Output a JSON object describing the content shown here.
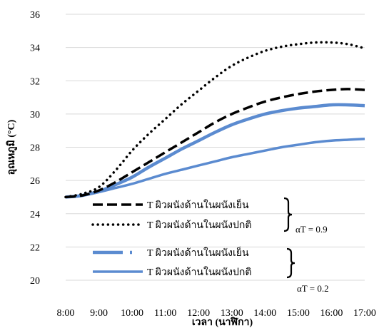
{
  "chart_data": {
    "type": "line",
    "title": "",
    "xlabel": "เวลา (นาฬิกา)",
    "ylabel": "อุณหภูมิ (°C)",
    "ylim": [
      20,
      36
    ],
    "yticks": [
      20,
      22,
      24,
      26,
      28,
      30,
      32,
      34,
      36
    ],
    "grid": "horizontal",
    "legend_position": "bottom-left-inside",
    "categories": [
      "8:00",
      "9:00",
      "10:00",
      "11:00",
      "12:00",
      "13:00",
      "14:00",
      "15:00",
      "16:00",
      "17:00"
    ],
    "series": [
      {
        "name": "T ผิวผนังด้านในผนังเย็น",
        "color": "#000000",
        "dash": "long-dash",
        "x": [
          8.0,
          8.5,
          9.0,
          9.5,
          10.0,
          10.5,
          11.0,
          11.5,
          12.0,
          12.5,
          13.0,
          13.5,
          14.0,
          14.5,
          15.0,
          15.5,
          16.0,
          16.5,
          17.0
        ],
        "values": [
          25.0,
          25.1,
          25.4,
          25.9,
          26.5,
          27.1,
          27.7,
          28.3,
          28.9,
          29.5,
          30.0,
          30.4,
          30.75,
          31.0,
          31.2,
          31.35,
          31.45,
          31.5,
          31.45
        ]
      },
      {
        "name": "T ผิวผนังด้านในผนังปกติ",
        "color": "#000000",
        "dash": "dotted",
        "x": [
          8.0,
          8.5,
          9.0,
          9.5,
          10.0,
          10.5,
          11.0,
          11.5,
          12.0,
          12.5,
          13.0,
          13.5,
          14.0,
          14.5,
          15.0,
          15.5,
          16.0,
          16.5,
          17.0
        ],
        "values": [
          25.0,
          25.2,
          25.6,
          26.6,
          27.8,
          28.8,
          29.7,
          30.6,
          31.4,
          32.2,
          32.9,
          33.4,
          33.8,
          34.05,
          34.2,
          34.3,
          34.3,
          34.2,
          33.95
        ]
      },
      {
        "name": "T ผิวผนังด้านในผนังเย็น",
        "color": "#5b8bd0",
        "dash": "dash-dot",
        "x": [
          8.0,
          8.5,
          9.0,
          9.5,
          10.0,
          10.5,
          11.0,
          11.5,
          12.0,
          12.5,
          13.0,
          13.5,
          14.0,
          14.5,
          15.0,
          15.5,
          16.0,
          16.5,
          17.0
        ],
        "values": [
          25.0,
          25.1,
          25.35,
          25.75,
          26.2,
          26.8,
          27.35,
          27.9,
          28.4,
          28.9,
          29.35,
          29.7,
          30.0,
          30.2,
          30.35,
          30.45,
          30.55,
          30.55,
          30.5
        ]
      },
      {
        "name": "T ผิวผนังด้านในผนังปกติ",
        "color": "#5b8bd0",
        "dash": "solid",
        "x": [
          8.0,
          8.5,
          9.0,
          9.5,
          10.0,
          10.5,
          11.0,
          11.5,
          12.0,
          12.5,
          13.0,
          13.5,
          14.0,
          14.5,
          15.0,
          15.5,
          16.0,
          16.5,
          17.0
        ],
        "values": [
          25.0,
          25.1,
          25.3,
          25.55,
          25.8,
          26.1,
          26.4,
          26.65,
          26.9,
          27.15,
          27.4,
          27.6,
          27.8,
          28.0,
          28.15,
          28.3,
          28.4,
          28.45,
          28.5
        ]
      }
    ],
    "annotations": [
      {
        "text": "αT = 0.9",
        "groups": [
          0,
          1
        ]
      },
      {
        "text": "αT = 0.2",
        "groups": [
          2,
          3
        ]
      }
    ]
  }
}
